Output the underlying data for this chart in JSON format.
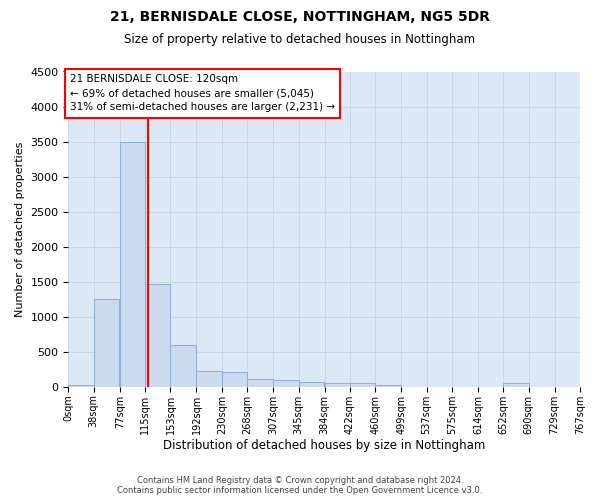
{
  "title_line1": "21, BERNISDALE CLOSE, NOTTINGHAM, NG5 5DR",
  "title_line2": "Size of property relative to detached houses in Nottingham",
  "xlabel": "Distribution of detached houses by size in Nottingham",
  "ylabel": "Number of detached properties",
  "bar_color": "#ccdaf0",
  "bar_edge_color": "#8aafd4",
  "grid_color": "#c0d0e0",
  "vline_x": 120,
  "vline_color": "red",
  "annotation_title": "21 BERNISDALE CLOSE: 120sqm",
  "annotation_line1": "← 69% of detached houses are smaller (5,045)",
  "annotation_line2": "31% of semi-detached houses are larger (2,231) →",
  "footnote1": "Contains HM Land Registry data © Crown copyright and database right 2024.",
  "footnote2": "Contains public sector information licensed under the Open Government Licence v3.0.",
  "bin_edges": [
    0,
    38,
    77,
    115,
    153,
    192,
    230,
    268,
    307,
    345,
    384,
    422,
    460,
    499,
    537,
    575,
    614,
    652,
    690,
    729,
    767
  ],
  "bin_labels": [
    "0sqm",
    "38sqm",
    "77sqm",
    "115sqm",
    "153sqm",
    "192sqm",
    "230sqm",
    "268sqm",
    "307sqm",
    "345sqm",
    "384sqm",
    "422sqm",
    "460sqm",
    "499sqm",
    "537sqm",
    "575sqm",
    "614sqm",
    "652sqm",
    "690sqm",
    "729sqm",
    "767sqm"
  ],
  "bar_heights": [
    30,
    1250,
    3500,
    1470,
    600,
    230,
    215,
    115,
    90,
    70,
    50,
    50,
    30,
    0,
    0,
    0,
    0,
    50,
    0,
    0
  ],
  "ylim": [
    0,
    4500
  ],
  "yticks": [
    0,
    500,
    1000,
    1500,
    2000,
    2500,
    3000,
    3500,
    4000,
    4500
  ],
  "background_color": "#ffffff",
  "plot_bg_color": "#dce8f5",
  "figsize": [
    6.0,
    5.0
  ],
  "dpi": 100
}
